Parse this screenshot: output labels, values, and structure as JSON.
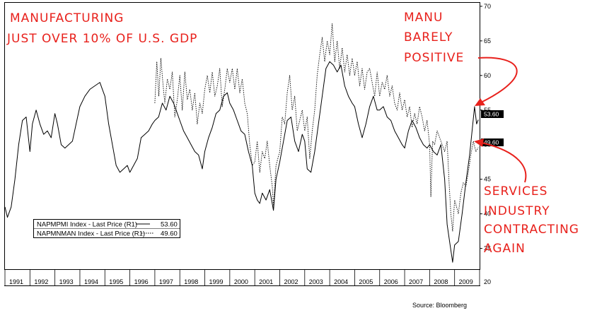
{
  "annotations": {
    "title_line1": "MANUFACTURING",
    "title_line2": "JUST OVER 10% OF U.S. GDP",
    "manu_line1": "MANU",
    "manu_line2": "BARELY",
    "manu_line3": "POSITIVE",
    "services_line1": "SERVICES",
    "services_line2": "INDUSTRY",
    "services_line3": "CONTRACTING",
    "services_line4": "AGAIN",
    "arrow_color": "#e8211c"
  },
  "source": "Source: Bloomberg",
  "last_price_tags": {
    "manufacturing": "53.60",
    "non_manufacturing": "49.60"
  },
  "legend": {
    "series1_label": "NAPMPMI Index - Last Price (R1)",
    "series1_value": "53.60",
    "series2_label": "NAPMNMAN Index - Last Price (R1)",
    "series2_value": "49.60"
  },
  "chart_data": {
    "type": "line",
    "title": "",
    "xlabel": "",
    "ylabel": "",
    "xlim": [
      1991.0,
      2010.0
    ],
    "ylim": [
      32,
      70.5
    ],
    "y_ticks": [
      35,
      40,
      45,
      50,
      55,
      60,
      65,
      70
    ],
    "y_axis_side": "right",
    "x_tick_labels": [
      "1991",
      "1992",
      "1993",
      "1994",
      "1995",
      "1996",
      "1997",
      "1998",
      "1999",
      "2000",
      "2001",
      "2002",
      "2003",
      "2004",
      "2005",
      "2006",
      "2007",
      "2008",
      "2009",
      "20"
    ],
    "grid": false,
    "legend_position": "bottom-left",
    "series": [
      {
        "name": "NAPMPMI Index - Last Price (R1)",
        "style": "solid",
        "points": [
          [
            1991.0,
            41.0
          ],
          [
            1991.1,
            39.5
          ],
          [
            1991.25,
            41.0
          ],
          [
            1991.4,
            45.0
          ],
          [
            1991.55,
            50.0
          ],
          [
            1991.7,
            53.5
          ],
          [
            1991.85,
            54.0
          ],
          [
            1992.0,
            49.0
          ],
          [
            1992.1,
            53.0
          ],
          [
            1992.25,
            55.0
          ],
          [
            1992.4,
            53.0
          ],
          [
            1992.55,
            51.5
          ],
          [
            1992.7,
            52.0
          ],
          [
            1992.85,
            51.0
          ],
          [
            1993.0,
            54.5
          ],
          [
            1993.1,
            53.0
          ],
          [
            1993.25,
            50.0
          ],
          [
            1993.4,
            49.5
          ],
          [
            1993.55,
            50.0
          ],
          [
            1993.7,
            50.5
          ],
          [
            1993.85,
            53.0
          ],
          [
            1994.0,
            55.5
          ],
          [
            1994.2,
            57.0
          ],
          [
            1994.4,
            58.0
          ],
          [
            1994.6,
            58.5
          ],
          [
            1994.8,
            59.0
          ],
          [
            1994.9,
            58.0
          ],
          [
            1995.0,
            57.0
          ],
          [
            1995.15,
            53.0
          ],
          [
            1995.3,
            50.0
          ],
          [
            1995.45,
            47.0
          ],
          [
            1995.6,
            46.0
          ],
          [
            1995.75,
            46.5
          ],
          [
            1995.9,
            47.0
          ],
          [
            1996.0,
            46.0
          ],
          [
            1996.15,
            47.0
          ],
          [
            1996.3,
            48.0
          ],
          [
            1996.45,
            51.0
          ],
          [
            1996.6,
            51.5
          ],
          [
            1996.75,
            52.0
          ],
          [
            1996.9,
            53.0
          ],
          [
            1997.0,
            53.5
          ],
          [
            1997.15,
            54.0
          ],
          [
            1997.3,
            56.0
          ],
          [
            1997.45,
            55.0
          ],
          [
            1997.6,
            57.0
          ],
          [
            1997.75,
            56.0
          ],
          [
            1997.9,
            54.5
          ],
          [
            1998.0,
            53.5
          ],
          [
            1998.15,
            52.0
          ],
          [
            1998.3,
            51.0
          ],
          [
            1998.45,
            50.0
          ],
          [
            1998.6,
            49.0
          ],
          [
            1998.75,
            48.5
          ],
          [
            1998.9,
            46.5
          ],
          [
            1999.0,
            49.0
          ],
          [
            1999.15,
            51.0
          ],
          [
            1999.3,
            52.5
          ],
          [
            1999.45,
            54.5
          ],
          [
            1999.6,
            55.0
          ],
          [
            1999.75,
            57.0
          ],
          [
            1999.9,
            57.5
          ],
          [
            2000.0,
            56.0
          ],
          [
            2000.15,
            55.0
          ],
          [
            2000.3,
            53.5
          ],
          [
            2000.45,
            52.0
          ],
          [
            2000.6,
            51.5
          ],
          [
            2000.75,
            49.0
          ],
          [
            2000.9,
            47.0
          ],
          [
            2001.0,
            43.0
          ],
          [
            2001.1,
            42.0
          ],
          [
            2001.2,
            41.5
          ],
          [
            2001.3,
            43.0
          ],
          [
            2001.45,
            42.0
          ],
          [
            2001.6,
            43.5
          ],
          [
            2001.75,
            40.5
          ],
          [
            2001.85,
            45.0
          ],
          [
            2002.0,
            47.5
          ],
          [
            2002.15,
            50.5
          ],
          [
            2002.3,
            53.5
          ],
          [
            2002.45,
            54.0
          ],
          [
            2002.6,
            50.5
          ],
          [
            2002.75,
            49.0
          ],
          [
            2002.9,
            51.5
          ],
          [
            2003.0,
            50.5
          ],
          [
            2003.1,
            46.5
          ],
          [
            2003.25,
            46.0
          ],
          [
            2003.4,
            49.0
          ],
          [
            2003.55,
            53.0
          ],
          [
            2003.7,
            57.0
          ],
          [
            2003.85,
            61.0
          ],
          [
            2004.0,
            62.0
          ],
          [
            2004.15,
            61.5
          ],
          [
            2004.3,
            60.5
          ],
          [
            2004.45,
            61.5
          ],
          [
            2004.6,
            58.5
          ],
          [
            2004.75,
            57.0
          ],
          [
            2004.9,
            56.0
          ],
          [
            2005.0,
            55.5
          ],
          [
            2005.15,
            53.0
          ],
          [
            2005.3,
            51.0
          ],
          [
            2005.45,
            53.0
          ],
          [
            2005.6,
            55.5
          ],
          [
            2005.75,
            57.0
          ],
          [
            2005.9,
            55.0
          ],
          [
            2006.0,
            55.0
          ],
          [
            2006.15,
            55.5
          ],
          [
            2006.3,
            54.0
          ],
          [
            2006.45,
            53.5
          ],
          [
            2006.6,
            52.0
          ],
          [
            2006.75,
            51.0
          ],
          [
            2006.9,
            50.0
          ],
          [
            2007.0,
            49.5
          ],
          [
            2007.15,
            52.0
          ],
          [
            2007.3,
            53.5
          ],
          [
            2007.45,
            52.5
          ],
          [
            2007.6,
            51.0
          ],
          [
            2007.75,
            50.0
          ],
          [
            2007.9,
            49.5
          ],
          [
            2008.0,
            50.0
          ],
          [
            2008.15,
            49.0
          ],
          [
            2008.3,
            48.5
          ],
          [
            2008.45,
            50.0
          ],
          [
            2008.6,
            45.0
          ],
          [
            2008.7,
            38.5
          ],
          [
            2008.8,
            36.0
          ],
          [
            2008.92,
            33.0
          ],
          [
            2009.0,
            35.5
          ],
          [
            2009.15,
            36.0
          ],
          [
            2009.3,
            40.0
          ],
          [
            2009.45,
            44.5
          ],
          [
            2009.6,
            48.5
          ],
          [
            2009.7,
            52.0
          ],
          [
            2009.8,
            55.5
          ],
          [
            2009.88,
            53.0
          ],
          [
            2009.95,
            53.6
          ]
        ]
      },
      {
        "name": "NAPMNMAN Index - Last Price (R1)",
        "style": "dotted",
        "points": [
          [
            1997.0,
            56.0
          ],
          [
            1997.08,
            62.0
          ],
          [
            1997.16,
            57.0
          ],
          [
            1997.24,
            62.5
          ],
          [
            1997.32,
            59.0
          ],
          [
            1997.4,
            56.0
          ],
          [
            1997.5,
            59.5
          ],
          [
            1997.6,
            58.0
          ],
          [
            1997.7,
            60.5
          ],
          [
            1997.8,
            54.0
          ],
          [
            1997.9,
            56.5
          ],
          [
            1998.0,
            60.0
          ],
          [
            1998.1,
            55.0
          ],
          [
            1998.2,
            60.5
          ],
          [
            1998.3,
            56.5
          ],
          [
            1998.4,
            58.0
          ],
          [
            1998.5,
            55.0
          ],
          [
            1998.6,
            57.5
          ],
          [
            1998.7,
            53.0
          ],
          [
            1998.8,
            56.0
          ],
          [
            1998.9,
            54.5
          ],
          [
            1999.0,
            58.0
          ],
          [
            1999.1,
            60.0
          ],
          [
            1999.2,
            57.5
          ],
          [
            1999.3,
            60.5
          ],
          [
            1999.4,
            57.0
          ],
          [
            1999.5,
            58.5
          ],
          [
            1999.6,
            61.0
          ],
          [
            1999.7,
            55.5
          ],
          [
            1999.8,
            58.0
          ],
          [
            1999.9,
            61.0
          ],
          [
            2000.0,
            59.0
          ],
          [
            2000.1,
            61.0
          ],
          [
            2000.2,
            58.0
          ],
          [
            2000.3,
            61.0
          ],
          [
            2000.4,
            57.5
          ],
          [
            2000.5,
            59.5
          ],
          [
            2000.6,
            56.0
          ],
          [
            2000.7,
            54.5
          ],
          [
            2000.8,
            50.0
          ],
          [
            2000.9,
            47.0
          ],
          [
            2001.0,
            47.5
          ],
          [
            2001.1,
            50.5
          ],
          [
            2001.2,
            46.0
          ],
          [
            2001.3,
            49.0
          ],
          [
            2001.4,
            48.0
          ],
          [
            2001.5,
            50.5
          ],
          [
            2001.6,
            47.0
          ],
          [
            2001.7,
            44.0
          ],
          [
            2001.75,
            41.0
          ],
          [
            2001.85,
            47.0
          ],
          [
            2002.0,
            49.0
          ],
          [
            2002.1,
            54.0
          ],
          [
            2002.2,
            53.0
          ],
          [
            2002.3,
            57.5
          ],
          [
            2002.4,
            60.0
          ],
          [
            2002.5,
            55.0
          ],
          [
            2002.6,
            57.0
          ],
          [
            2002.7,
            52.0
          ],
          [
            2002.8,
            53.5
          ],
          [
            2002.9,
            55.0
          ],
          [
            2003.0,
            52.0
          ],
          [
            2003.1,
            54.0
          ],
          [
            2003.2,
            48.0
          ],
          [
            2003.3,
            52.0
          ],
          [
            2003.4,
            55.0
          ],
          [
            2003.5,
            60.0
          ],
          [
            2003.6,
            63.0
          ],
          [
            2003.7,
            65.5
          ],
          [
            2003.8,
            62.0
          ],
          [
            2003.9,
            65.0
          ],
          [
            2004.0,
            63.0
          ],
          [
            2004.1,
            67.5
          ],
          [
            2004.2,
            62.0
          ],
          [
            2004.3,
            65.0
          ],
          [
            2004.4,
            61.0
          ],
          [
            2004.5,
            64.0
          ],
          [
            2004.6,
            60.5
          ],
          [
            2004.7,
            63.0
          ],
          [
            2004.8,
            60.0
          ],
          [
            2004.9,
            62.5
          ],
          [
            2005.0,
            60.0
          ],
          [
            2005.1,
            62.0
          ],
          [
            2005.2,
            58.5
          ],
          [
            2005.3,
            61.0
          ],
          [
            2005.4,
            58.0
          ],
          [
            2005.5,
            60.5
          ],
          [
            2005.6,
            61.0
          ],
          [
            2005.7,
            59.0
          ],
          [
            2005.8,
            57.0
          ],
          [
            2005.9,
            60.5
          ],
          [
            2006.0,
            57.0
          ],
          [
            2006.1,
            59.0
          ],
          [
            2006.2,
            58.0
          ],
          [
            2006.3,
            60.0
          ],
          [
            2006.4,
            57.0
          ],
          [
            2006.5,
            58.5
          ],
          [
            2006.6,
            56.0
          ],
          [
            2006.7,
            55.0
          ],
          [
            2006.8,
            57.5
          ],
          [
            2006.9,
            55.0
          ],
          [
            2007.0,
            56.5
          ],
          [
            2007.1,
            54.0
          ],
          [
            2007.2,
            55.5
          ],
          [
            2007.3,
            52.5
          ],
          [
            2007.4,
            54.5
          ],
          [
            2007.5,
            53.0
          ],
          [
            2007.6,
            55.5
          ],
          [
            2007.7,
            54.0
          ],
          [
            2007.8,
            52.0
          ],
          [
            2007.9,
            53.5
          ],
          [
            2008.0,
            50.0
          ],
          [
            2008.05,
            42.5
          ],
          [
            2008.12,
            50.5
          ],
          [
            2008.2,
            50.0
          ],
          [
            2008.3,
            52.0
          ],
          [
            2008.4,
            51.0
          ],
          [
            2008.5,
            50.0
          ],
          [
            2008.6,
            49.0
          ],
          [
            2008.7,
            50.5
          ],
          [
            2008.78,
            44.5
          ],
          [
            2008.85,
            40.0
          ],
          [
            2008.92,
            37.5
          ],
          [
            2009.0,
            42.0
          ],
          [
            2009.08,
            41.0
          ],
          [
            2009.15,
            40.0
          ],
          [
            2009.25,
            43.0
          ],
          [
            2009.35,
            44.5
          ],
          [
            2009.45,
            44.0
          ],
          [
            2009.55,
            46.0
          ],
          [
            2009.65,
            48.5
          ],
          [
            2009.75,
            50.5
          ],
          [
            2009.85,
            49.0
          ],
          [
            2009.95,
            49.6
          ]
        ]
      }
    ]
  }
}
